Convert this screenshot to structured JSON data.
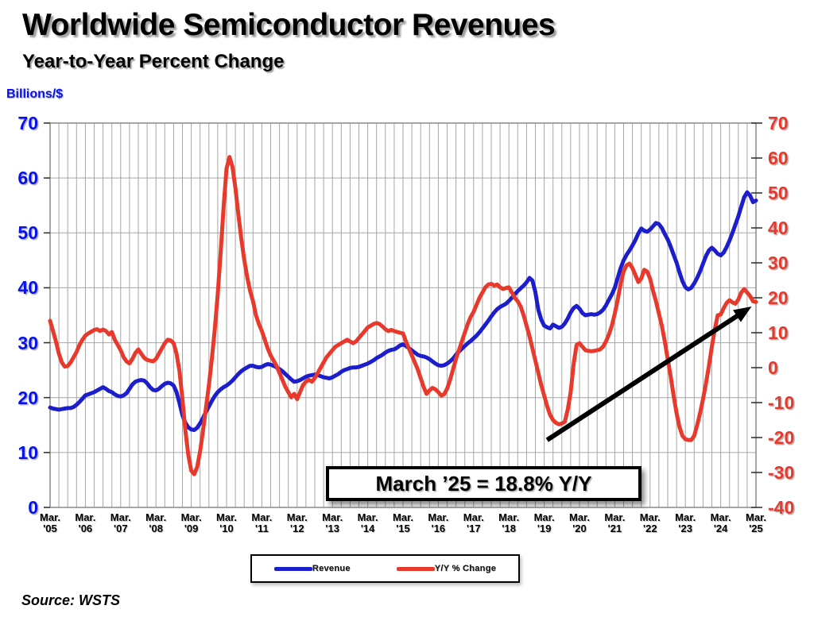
{
  "header": {
    "title": "Worldwide Semiconductor Revenues",
    "subtitle": "Year-to-Year Percent Change"
  },
  "source": {
    "text": "Source: WSTS"
  },
  "annotation": {
    "text": "March ’25 = 18.8% Y/Y"
  },
  "legend": {
    "items": [
      {
        "label": "Revenue",
        "color": "#1c1ecb"
      },
      {
        "label": "Y/Y % Change",
        "color": "#e73a2d"
      }
    ]
  },
  "colors": {
    "grid": "#a6a6a6",
    "plot_border": "#808080",
    "tick": "#333333",
    "arrow": "#000000",
    "left_axis_text": "#0711ee",
    "right_axis_text": "#e73a2d"
  },
  "chart_data": {
    "type": "line",
    "title": "Worldwide Semiconductor Revenues",
    "subtitle": "Year-to-Year Percent Change",
    "x_unit": "month",
    "x_start": "Mar 2005",
    "x_end": "Mar 2025",
    "months_total": 240,
    "grid": {
      "horizontal_step_left_axis": 10,
      "vertical_step_months": 3
    },
    "legend_position": "bottom-center",
    "x_ticks": [
      {
        "line1": "Mar.",
        "line2": "'05"
      },
      {
        "line1": "Mar.",
        "line2": "'06"
      },
      {
        "line1": "Mar.",
        "line2": "'07"
      },
      {
        "line1": "Mar.",
        "line2": "'08"
      },
      {
        "line1": "Mar.",
        "line2": "'09"
      },
      {
        "line1": "Mar.",
        "line2": "'10"
      },
      {
        "line1": "Mar.",
        "line2": "'11"
      },
      {
        "line1": "Mar.",
        "line2": "'12"
      },
      {
        "line1": "Mar.",
        "line2": "'13"
      },
      {
        "line1": "Mar.",
        "line2": "'14"
      },
      {
        "line1": "Mar.",
        "line2": "'15"
      },
      {
        "line1": "Mar.",
        "line2": "'16"
      },
      {
        "line1": "Mar.",
        "line2": "'17"
      },
      {
        "line1": "Mar.",
        "line2": "'18"
      },
      {
        "line1": "Mar.",
        "line2": "'19"
      },
      {
        "line1": "Mar.",
        "line2": "'20"
      },
      {
        "line1": "Mar.",
        "line2": "'21"
      },
      {
        "line1": "Mar.",
        "line2": "'22"
      },
      {
        "line1": "Mar.",
        "line2": "'23"
      },
      {
        "line1": "Mar.",
        "line2": "'24"
      },
      {
        "line1": "Mar.",
        "line2": "'25"
      }
    ],
    "left_axis": {
      "label": "Billions/$",
      "min": 0,
      "max": 70,
      "step": 10,
      "ticks": [
        0,
        10,
        20,
        30,
        40,
        50,
        60,
        70
      ],
      "color": "#0711ee"
    },
    "right_axis": {
      "min": -40,
      "max": 70,
      "step": 10,
      "ticks": [
        -40,
        -30,
        -20,
        -10,
        0,
        10,
        20,
        30,
        40,
        50,
        60,
        70
      ],
      "color": "#e73a2d"
    },
    "series": [
      {
        "name": "Revenue",
        "axis": "left",
        "color": "#1c1ecb",
        "values": [
          18.2,
          18.0,
          17.9,
          17.8,
          17.9,
          18.0,
          18.1,
          18.1,
          18.3,
          18.7,
          19.2,
          19.8,
          20.4,
          20.6,
          20.8,
          21.0,
          21.3,
          21.6,
          21.9,
          21.6,
          21.2,
          21.0,
          20.6,
          20.3,
          20.2,
          20.4,
          20.8,
          21.6,
          22.4,
          22.9,
          23.1,
          23.2,
          23.1,
          22.6,
          21.9,
          21.4,
          21.3,
          21.6,
          22.1,
          22.5,
          22.7,
          22.6,
          22.2,
          21.0,
          19.0,
          16.8,
          15.4,
          14.6,
          14.2,
          14.1,
          14.5,
          15.3,
          16.3,
          17.4,
          18.4,
          19.4,
          20.3,
          21.0,
          21.5,
          21.9,
          22.2,
          22.6,
          23.1,
          23.7,
          24.3,
          24.8,
          25.2,
          25.5,
          25.8,
          25.8,
          25.6,
          25.5,
          25.6,
          25.9,
          26.1,
          26.0,
          25.8,
          25.5,
          25.2,
          24.8,
          24.3,
          23.8,
          23.3,
          22.9,
          23.0,
          23.2,
          23.5,
          23.8,
          24.0,
          24.1,
          24.2,
          24.1,
          23.9,
          23.7,
          23.6,
          23.5,
          23.7,
          24.0,
          24.3,
          24.7,
          25.0,
          25.2,
          25.4,
          25.5,
          25.5,
          25.6,
          25.8,
          26.0,
          26.2,
          26.5,
          26.8,
          27.2,
          27.5,
          27.8,
          28.2,
          28.5,
          28.7,
          28.8,
          29.1,
          29.5,
          29.7,
          29.4,
          29.0,
          28.6,
          28.2,
          27.8,
          27.6,
          27.5,
          27.3,
          27.0,
          26.6,
          26.2,
          25.9,
          25.8,
          25.9,
          26.2,
          26.6,
          27.1,
          27.8,
          28.4,
          28.9,
          29.4,
          29.9,
          30.3,
          30.8,
          31.3,
          31.9,
          32.6,
          33.3,
          34.0,
          34.8,
          35.5,
          36.1,
          36.5,
          36.8,
          37.1,
          37.6,
          38.2,
          38.8,
          39.4,
          39.9,
          40.4,
          41.0,
          41.8,
          41.3,
          39.2,
          36.0,
          34.2,
          33.1,
          32.8,
          32.6,
          33.3,
          33.0,
          32.7,
          32.9,
          33.5,
          34.4,
          35.5,
          36.3,
          36.7,
          36.2,
          35.4,
          35.0,
          35.1,
          35.2,
          35.1,
          35.2,
          35.5,
          36.0,
          36.8,
          37.8,
          38.8,
          40.0,
          41.8,
          43.6,
          45.0,
          46.0,
          46.8,
          47.7,
          48.7,
          49.9,
          50.8,
          50.4,
          50.2,
          50.6,
          51.2,
          51.8,
          51.6,
          50.9,
          49.8,
          48.8,
          47.5,
          46.0,
          44.6,
          42.8,
          41.2,
          40.1,
          39.7,
          40.0,
          40.8,
          41.8,
          43.0,
          44.4,
          45.8,
          46.8,
          47.3,
          46.8,
          46.2,
          45.9,
          46.4,
          47.4,
          48.6,
          50.0,
          51.5,
          53.0,
          54.8,
          56.5,
          57.4,
          56.8,
          55.6,
          55.9
        ]
      },
      {
        "name": "Y/Y % Change",
        "axis": "right",
        "color": "#e73a2d",
        "values": [
          13.4,
          10.5,
          7.5,
          4.0,
          1.5,
          0.3,
          0.5,
          1.5,
          3.0,
          4.5,
          6.5,
          8.0,
          9.2,
          9.8,
          10.3,
          10.8,
          11.0,
          10.5,
          10.9,
          10.5,
          9.5,
          10.2,
          8.0,
          6.5,
          5.0,
          3.0,
          1.8,
          1.2,
          2.5,
          4.2,
          5.2,
          4.0,
          2.8,
          2.2,
          2.0,
          1.8,
          2.5,
          4.0,
          5.5,
          7.0,
          8.0,
          7.8,
          7.0,
          4.0,
          -1.0,
          -9.0,
          -18.0,
          -25.0,
          -29.5,
          -30.5,
          -28.5,
          -24.0,
          -18.0,
          -11.5,
          -5.0,
          2.5,
          11.0,
          21.0,
          33.0,
          46.0,
          57.0,
          60.3,
          57.5,
          51.5,
          44.0,
          37.0,
          31.0,
          26.0,
          22.0,
          19.0,
          15.0,
          12.5,
          10.5,
          8.0,
          5.5,
          3.5,
          2.0,
          0.5,
          -1.5,
          -3.5,
          -5.5,
          -7.0,
          -8.5,
          -7.5,
          -9.0,
          -7.0,
          -5.0,
          -4.0,
          -3.5,
          -4.0,
          -3.0,
          -1.5,
          0.0,
          1.5,
          3.0,
          4.0,
          5.0,
          6.0,
          6.5,
          7.0,
          7.5,
          8.0,
          7.5,
          7.0,
          7.5,
          8.5,
          9.5,
          10.5,
          11.5,
          12.0,
          12.5,
          12.8,
          12.5,
          11.8,
          11.0,
          10.5,
          10.8,
          10.5,
          10.2,
          10.0,
          9.8,
          7.5,
          5.5,
          3.5,
          1.5,
          -0.5,
          -3.0,
          -5.5,
          -7.5,
          -6.5,
          -5.8,
          -6.2,
          -7.0,
          -8.0,
          -7.6,
          -6.0,
          -3.5,
          -0.5,
          2.5,
          5.0,
          7.5,
          10.0,
          12.5,
          14.5,
          16.0,
          18.0,
          20.0,
          21.5,
          23.0,
          23.8,
          24.0,
          23.5,
          23.8,
          23.0,
          22.5,
          22.8,
          23.0,
          21.5,
          20.0,
          19.0,
          17.5,
          15.0,
          12.0,
          9.0,
          5.5,
          2.0,
          -1.5,
          -5.0,
          -8.0,
          -11.0,
          -13.5,
          -15.0,
          -15.8,
          -16.2,
          -16.0,
          -15.5,
          -12.0,
          -7.0,
          1.0,
          6.5,
          7.0,
          6.0,
          5.0,
          4.8,
          4.7,
          4.8,
          5.0,
          5.2,
          6.0,
          7.5,
          9.5,
          12.0,
          15.5,
          19.5,
          24.0,
          27.5,
          29.3,
          29.8,
          28.5,
          26.5,
          24.5,
          25.5,
          28.0,
          27.5,
          25.5,
          22.0,
          19.0,
          15.5,
          12.0,
          7.5,
          2.5,
          -2.5,
          -8.0,
          -13.0,
          -17.0,
          -19.5,
          -20.5,
          -20.7,
          -20.7,
          -19.5,
          -16.5,
          -13.0,
          -9.0,
          -4.5,
          0.5,
          6.0,
          11.0,
          15.0,
          15.2,
          17.0,
          18.5,
          19.3,
          18.7,
          18.3,
          19.5,
          21.5,
          22.5,
          21.5,
          20.5,
          19.0,
          18.8
        ]
      }
    ],
    "annotation": {
      "text": "March ’25 = 18.8% Y/Y"
    },
    "arrow": {
      "axis": "right",
      "from": {
        "month": 169,
        "value": -20.7
      },
      "to": {
        "month": 238.5,
        "value": 17.5
      }
    }
  }
}
